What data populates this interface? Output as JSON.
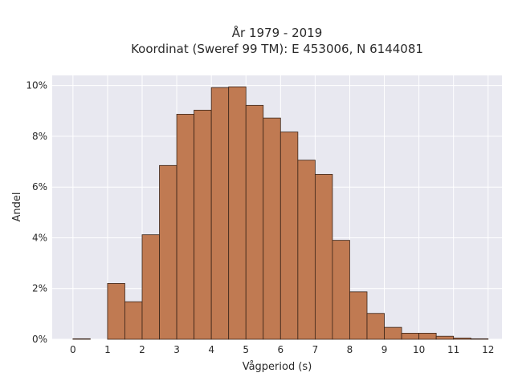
{
  "chart_data": {
    "type": "bar",
    "title_line1": "År 1979 - 2019",
    "title_line2": "Koordinat (Sweref 99 TM): E 453006, N 6144081",
    "xlabel": "Vågperiod (s)",
    "ylabel": "Andel",
    "xlim": [
      -0.6,
      12.4
    ],
    "ylim": [
      0,
      10.4
    ],
    "x_ticks": [
      0,
      1,
      2,
      3,
      4,
      5,
      6,
      7,
      8,
      9,
      10,
      11,
      12
    ],
    "x_tick_labels": [
      "0",
      "1",
      "2",
      "3",
      "4",
      "5",
      "6",
      "7",
      "8",
      "9",
      "10",
      "11",
      "12"
    ],
    "y_ticks": [
      0,
      2,
      4,
      6,
      8,
      10
    ],
    "y_tick_labels": [
      "0%",
      "2%",
      "4%",
      "6%",
      "8%",
      "10%"
    ],
    "bin_width": 0.5,
    "bins": [
      {
        "start": 0.0,
        "value": 0.02
      },
      {
        "start": 1.0,
        "value": 2.2
      },
      {
        "start": 1.5,
        "value": 1.48
      },
      {
        "start": 2.0,
        "value": 4.12
      },
      {
        "start": 2.5,
        "value": 6.85
      },
      {
        "start": 3.0,
        "value": 8.87
      },
      {
        "start": 3.5,
        "value": 9.03
      },
      {
        "start": 4.0,
        "value": 9.92
      },
      {
        "start": 4.5,
        "value": 9.95
      },
      {
        "start": 5.0,
        "value": 9.22
      },
      {
        "start": 5.5,
        "value": 8.72
      },
      {
        "start": 6.0,
        "value": 8.17
      },
      {
        "start": 6.5,
        "value": 7.06
      },
      {
        "start": 7.0,
        "value": 6.5
      },
      {
        "start": 7.5,
        "value": 3.9
      },
      {
        "start": 8.0,
        "value": 1.87
      },
      {
        "start": 8.5,
        "value": 1.02
      },
      {
        "start": 9.0,
        "value": 0.47
      },
      {
        "start": 9.5,
        "value": 0.24
      },
      {
        "start": 10.0,
        "value": 0.24
      },
      {
        "start": 10.5,
        "value": 0.12
      },
      {
        "start": 11.0,
        "value": 0.05
      },
      {
        "start": 11.5,
        "value": 0.02
      }
    ],
    "grid": true,
    "colors": {
      "bar_fill": "#c07a52",
      "bar_edge": "#3a2418",
      "plot_bg": "#e8e8f0",
      "grid": "#ffffff"
    }
  }
}
